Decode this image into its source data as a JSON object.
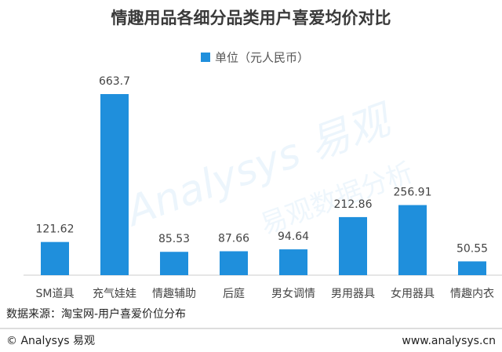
{
  "chart_data": {
    "type": "bar",
    "title": "情趣用品各细分品类用户喜爱均价对比",
    "legend_label": "单位（元人民币）",
    "categories": [
      "SM道具",
      "充气娃娃",
      "情趣辅助",
      "后庭",
      "男女调情",
      "男用器具",
      "女用器具",
      "情趣内衣"
    ],
    "series": [
      {
        "name": "单位（元人民币）",
        "color": "#1f8fdc",
        "values": [
          121.62,
          663.7,
          85.53,
          87.66,
          94.64,
          212.86,
          256.91,
          50.55
        ]
      }
    ],
    "source": "数据来源：淘宝网-用户喜爱价位分布",
    "footer_left": "© Analysys 易观",
    "footer_right": "www.analysys.cn",
    "watermark": "Analysys 易观",
    "watermark_sub": "易观数据分析"
  }
}
